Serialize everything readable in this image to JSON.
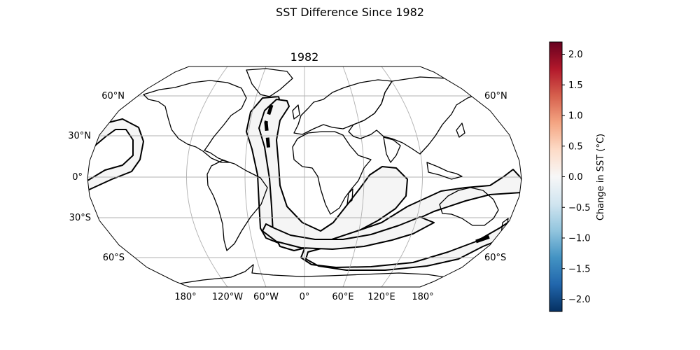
{
  "figure": {
    "suptitle": "SST Difference Since 1982",
    "map_title": "1982",
    "projection": "Robinson",
    "gridlines": true
  },
  "lat_ticks": [
    {
      "left": "60°N",
      "right": "60°N"
    },
    {
      "left": "30°N",
      "right": "30°N"
    },
    {
      "left": "0°",
      "right": ""
    },
    {
      "left": "30°S",
      "right": ""
    },
    {
      "left": "60°S",
      "right": "60°S"
    }
  ],
  "lon_ticks": [
    "180°",
    "120°W",
    "60°W",
    "0°",
    "60°E",
    "120°E",
    "180°"
  ],
  "colorbar": {
    "label": "Change in SST (°C)",
    "colormap": "RdBu_r",
    "vmin": -2.2,
    "vmax": 2.2,
    "ticks": [
      "2.0",
      "1.5",
      "1.0",
      "0.5",
      "0.0",
      "−0.5",
      "−1.0",
      "−1.5",
      "−2.0"
    ],
    "colors": [
      "#053061",
      "#2166ac",
      "#4393c3",
      "#92c5de",
      "#d1e5f0",
      "#f7f7f7",
      "#fddbc7",
      "#f4a582",
      "#d6604d",
      "#b2182b",
      "#67001f"
    ]
  },
  "field": {
    "fill_color": "#f5f5f5",
    "contour_color": "#000000"
  }
}
